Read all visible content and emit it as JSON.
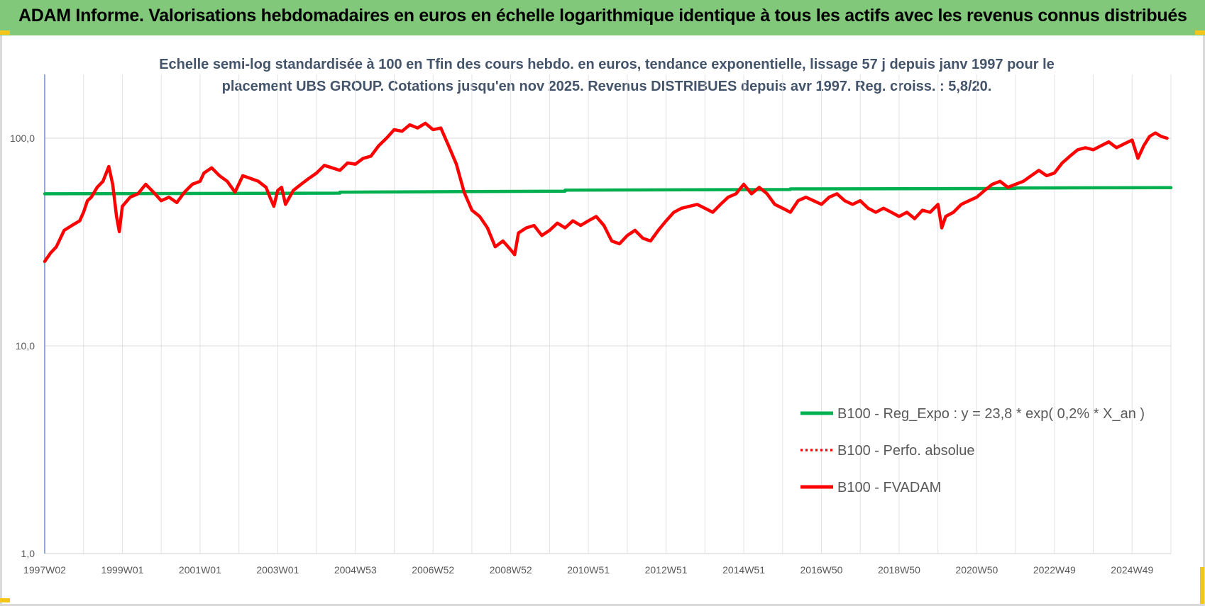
{
  "banner": {
    "title": "ADAM Informe. Valorisations hebdomadaires en euros en échelle logarithmique identique à tous les actifs avec les revenus connus distribués"
  },
  "colors": {
    "banner_bg": "#82c87a",
    "regression": "#00b050",
    "fvadam": "#ff0000",
    "perfo": "#ff0000",
    "subtitle": "#44546a",
    "accent_corner": "#f5c518"
  },
  "chart_data": {
    "type": "line",
    "title": "Echelle semi-log standardisée à 100 en Tfin des cours hebdo. en euros, tendance exponentielle, lissage 57 j depuis janv 1997 pour le placement UBS GROUP. Cotations jusqu'en nov 2025. Revenus DISTRIBUES depuis avr 1997. Reg. croiss. : 5,8/20.",
    "title_lines": [
      "Echelle semi-log standardisée à 100 en Tfin des cours hebdo. en euros, tendance exponentielle, lissage 57 j depuis janv 1997 pour le",
      "placement UBS GROUP. Cotations jusqu'en nov 2025. Revenus DISTRIBUES depuis avr 1997. Reg. croiss. : 5,8/20."
    ],
    "y_scale": "log",
    "ylim": [
      1,
      200
    ],
    "xlim": [
      1997.0,
      2026.0
    ],
    "y_ticks": [
      {
        "value": 1,
        "label": "1,0"
      },
      {
        "value": 10,
        "label": "10,0"
      },
      {
        "value": 100,
        "label": "100,0"
      }
    ],
    "x_ticks": [
      {
        "value": 1997.0,
        "label": "1997W02"
      },
      {
        "value": 1999.0,
        "label": "1999W01"
      },
      {
        "value": 2001.0,
        "label": "2001W01"
      },
      {
        "value": 2003.0,
        "label": "2003W01"
      },
      {
        "value": 2005.0,
        "label": "2004W53"
      },
      {
        "value": 2007.0,
        "label": "2006W52"
      },
      {
        "value": 2009.0,
        "label": "2008W52"
      },
      {
        "value": 2011.0,
        "label": "2010W51"
      },
      {
        "value": 2013.0,
        "label": "2012W51"
      },
      {
        "value": 2015.0,
        "label": "2014W51"
      },
      {
        "value": 2017.0,
        "label": "2016W50"
      },
      {
        "value": 2019.0,
        "label": "2018W50"
      },
      {
        "value": 2021.0,
        "label": "2020W50"
      },
      {
        "value": 2023.0,
        "label": "2022W49"
      },
      {
        "value": 2025.0,
        "label": "2024W49"
      }
    ],
    "grid": true,
    "legend_position": "lower-right",
    "series": [
      {
        "name": "B100 - Reg_Expo : y = 23,8 * exp( 0,2% *  X_an )",
        "style": "solid-thick",
        "color": "#00b050",
        "x": [
          1997.0,
          2004.6,
          2004.6,
          2010.4,
          2010.4,
          2016.2,
          2016.2,
          2022.0,
          2022.0,
          2026.0
        ],
        "y": [
          54.0,
          54.4,
          55.0,
          55.6,
          56.2,
          56.6,
          57.0,
          57.3,
          57.6,
          57.8
        ]
      },
      {
        "name": "B100 - Perfo. absolue",
        "style": "dotted",
        "color": "#ff0000",
        "x": [],
        "y": []
      },
      {
        "name": "B100 - FVADAM",
        "style": "solid-thick",
        "color": "#ff0000",
        "x": [
          1997.0,
          1997.15,
          1997.3,
          1997.5,
          1997.7,
          1997.9,
          1998.0,
          1998.1,
          1998.2,
          1998.35,
          1998.5,
          1998.65,
          1998.75,
          1998.85,
          1998.92,
          1999.0,
          1999.2,
          1999.4,
          1999.6,
          1999.8,
          2000.0,
          2000.2,
          2000.4,
          2000.6,
          2000.8,
          2001.0,
          2001.1,
          2001.3,
          2001.5,
          2001.7,
          2001.9,
          2002.1,
          2002.3,
          2002.5,
          2002.7,
          2002.8,
          2002.9,
          2003.0,
          2003.1,
          2003.2,
          2003.4,
          2003.6,
          2003.8,
          2004.0,
          2004.2,
          2004.4,
          2004.6,
          2004.8,
          2005.0,
          2005.2,
          2005.4,
          2005.6,
          2005.8,
          2006.0,
          2006.2,
          2006.4,
          2006.6,
          2006.8,
          2007.0,
          2007.2,
          2007.4,
          2007.6,
          2007.8,
          2008.0,
          2008.2,
          2008.4,
          2008.6,
          2008.8,
          2009.0,
          2009.1,
          2009.2,
          2009.4,
          2009.6,
          2009.8,
          2010.0,
          2010.2,
          2010.4,
          2010.6,
          2010.8,
          2011.0,
          2011.2,
          2011.4,
          2011.6,
          2011.8,
          2012.0,
          2012.2,
          2012.4,
          2012.6,
          2012.8,
          2013.0,
          2013.2,
          2013.4,
          2013.6,
          2013.8,
          2014.0,
          2014.2,
          2014.4,
          2014.6,
          2014.8,
          2015.0,
          2015.2,
          2015.4,
          2015.6,
          2015.8,
          2016.0,
          2016.2,
          2016.4,
          2016.6,
          2016.8,
          2017.0,
          2017.2,
          2017.4,
          2017.6,
          2017.8,
          2018.0,
          2018.2,
          2018.4,
          2018.6,
          2018.8,
          2019.0,
          2019.2,
          2019.4,
          2019.6,
          2019.8,
          2020.0,
          2020.1,
          2020.2,
          2020.4,
          2020.6,
          2020.8,
          2021.0,
          2021.2,
          2021.4,
          2021.6,
          2021.8,
          2022.0,
          2022.2,
          2022.4,
          2022.6,
          2022.8,
          2023.0,
          2023.2,
          2023.4,
          2023.6,
          2023.8,
          2024.0,
          2024.2,
          2024.4,
          2024.6,
          2024.8,
          2025.0,
          2025.15,
          2025.3,
          2025.45,
          2025.6,
          2025.75,
          2025.9
        ],
        "y": [
          25.5,
          28.0,
          30.0,
          36.0,
          38.0,
          40.0,
          44.0,
          50.0,
          52.0,
          58.0,
          62.0,
          73.0,
          60.0,
          42.0,
          35.5,
          47.0,
          52.0,
          54.0,
          60.0,
          55.0,
          50.0,
          52.0,
          49.0,
          55.0,
          60.0,
          62.0,
          68.0,
          72.0,
          66.0,
          62.0,
          55.0,
          66.0,
          64.0,
          62.0,
          58.0,
          52.0,
          47.0,
          56.0,
          58.0,
          48.0,
          56.0,
          60.0,
          64.0,
          68.0,
          74.0,
          72.0,
          70.0,
          76.0,
          75.0,
          80.0,
          82.0,
          92.0,
          100.0,
          110.0,
          108.0,
          116.0,
          112.0,
          118.0,
          110.0,
          112.0,
          92.0,
          75.0,
          55.0,
          45.0,
          42.0,
          37.0,
          30.0,
          32.0,
          29.0,
          27.5,
          35.0,
          37.0,
          38.0,
          34.0,
          36.0,
          39.0,
          37.0,
          40.0,
          38.0,
          40.0,
          42.0,
          38.0,
          32.0,
          31.0,
          34.0,
          36.0,
          33.0,
          32.0,
          36.0,
          40.0,
          44.0,
          46.0,
          47.0,
          48.0,
          46.0,
          44.0,
          48.0,
          52.0,
          54.0,
          60.0,
          54.0,
          58.0,
          54.0,
          48.0,
          46.0,
          44.0,
          50.0,
          52.0,
          50.0,
          48.0,
          52.0,
          54.0,
          50.0,
          48.0,
          50.0,
          46.0,
          44.0,
          46.0,
          44.0,
          42.0,
          44.0,
          41.0,
          45.0,
          44.0,
          48.0,
          37.0,
          42.0,
          44.0,
          48.0,
          50.0,
          52.0,
          56.0,
          60.0,
          62.0,
          58.0,
          60.0,
          62.0,
          66.0,
          70.0,
          66.0,
          68.0,
          76.0,
          82.0,
          88.0,
          90.0,
          88.0,
          92.0,
          96.0,
          90.0,
          94.0,
          98.0,
          80.0,
          92.0,
          102.0,
          106.0,
          102.0,
          100.0
        ]
      }
    ]
  }
}
